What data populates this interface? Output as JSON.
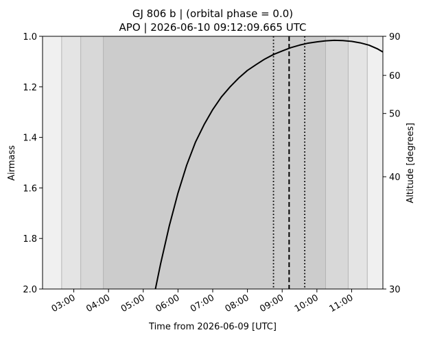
{
  "chart_data": {
    "type": "line",
    "title_lines": [
      "GJ 806 b | (orbital phase = 0.0)",
      "APO | 2026-06-10 09:12:09.665 UTC"
    ],
    "xlabel": "Time from 2026-06-09 [UTC]",
    "ylabel": "Airmass",
    "ylabel_right": "Altitude [degrees]",
    "xlim_hours": [
      2.1,
      11.9
    ],
    "x_ticks": [
      {
        "hour": 3,
        "label": "03:00"
      },
      {
        "hour": 4,
        "label": "04:00"
      },
      {
        "hour": 5,
        "label": "05:00"
      },
      {
        "hour": 6,
        "label": "06:00"
      },
      {
        "hour": 7,
        "label": "07:00"
      },
      {
        "hour": 8,
        "label": "08:00"
      },
      {
        "hour": 9,
        "label": "09:00"
      },
      {
        "hour": 10,
        "label": "10:00"
      },
      {
        "hour": 11,
        "label": "11:00"
      }
    ],
    "ylim": [
      2.0,
      1.0
    ],
    "y_ticks": [
      {
        "value": 1.0,
        "label": "1.0"
      },
      {
        "value": 1.2,
        "label": "1.2"
      },
      {
        "value": 1.4,
        "label": "1.4"
      },
      {
        "value": 1.6,
        "label": "1.6"
      },
      {
        "value": 1.8,
        "label": "1.8"
      },
      {
        "value": 2.0,
        "label": "2.0"
      }
    ],
    "altitude_ticks": [
      {
        "value": 90,
        "label": "90"
      },
      {
        "value": 60,
        "label": "60"
      },
      {
        "value": 50,
        "label": "50"
      },
      {
        "value": 40,
        "label": "40"
      },
      {
        "value": 30,
        "label": "30"
      }
    ],
    "twilight_bands": [
      {
        "start": 2.1,
        "end": 2.65,
        "color": "#f0f0f0"
      },
      {
        "start": 2.65,
        "end": 3.2,
        "color": "#e4e4e4"
      },
      {
        "start": 3.2,
        "end": 3.85,
        "color": "#d8d8d8"
      },
      {
        "start": 3.85,
        "end": 10.25,
        "color": "#cccccc"
      },
      {
        "start": 10.25,
        "end": 10.9,
        "color": "#d8d8d8"
      },
      {
        "start": 10.9,
        "end": 11.45,
        "color": "#e4e4e4"
      },
      {
        "start": 11.45,
        "end": 11.9,
        "color": "#f0f0f0"
      }
    ],
    "series": [
      {
        "x": [
          5.35,
          5.5,
          5.75,
          6.0,
          6.25,
          6.5,
          6.75,
          7.0,
          7.25,
          7.5,
          7.75,
          8.0,
          8.25,
          8.5,
          8.75,
          9.0,
          9.25,
          9.5,
          9.75,
          10.0,
          10.25,
          10.5,
          10.75,
          11.0,
          11.25,
          11.5,
          11.75,
          11.9
        ],
        "y": [
          2.0,
          1.9,
          1.75,
          1.62,
          1.51,
          1.42,
          1.35,
          1.29,
          1.24,
          1.2,
          1.165,
          1.135,
          1.112,
          1.09,
          1.072,
          1.058,
          1.045,
          1.035,
          1.027,
          1.022,
          1.018,
          1.016,
          1.017,
          1.02,
          1.026,
          1.035,
          1.05,
          1.062
        ],
        "color": "#000000"
      }
    ],
    "vertical_markers": [
      {
        "hour": 8.75,
        "style": "dotted"
      },
      {
        "hour": 9.2,
        "style": "dashed"
      },
      {
        "hour": 9.65,
        "style": "dotted"
      }
    ]
  }
}
